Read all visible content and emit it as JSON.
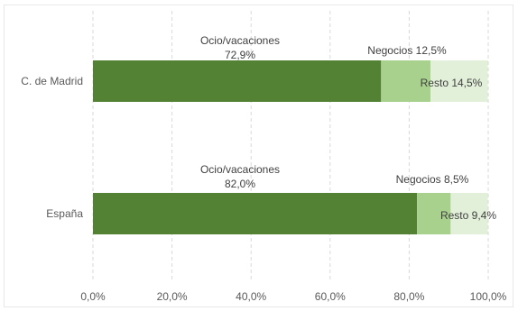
{
  "chart_data": {
    "type": "bar",
    "orientation": "horizontal",
    "stacked": true,
    "categories": [
      "C. de Madrid",
      "España"
    ],
    "series": [
      {
        "values": [
          72.9,
          82.0
        ],
        "labels": [
          "Ocio/vacaciones",
          "Ocio/vacaciones"
        ],
        "color": "#548235"
      },
      {
        "values": [
          12.5,
          8.5
        ],
        "labels": [
          "Negocios 12,5%",
          "Negocios 8,5%"
        ],
        "color": "#a9d18e"
      },
      {
        "values": [
          14.5,
          9.4
        ],
        "labels": [
          "Resto 14,5%",
          "Resto 9,4%"
        ],
        "color": "#e2f0d9"
      }
    ],
    "series_value_labels": [
      [
        "72,9%",
        "82,0%"
      ]
    ],
    "xlim": [
      0,
      100
    ],
    "x_ticks": [
      0,
      20,
      40,
      60,
      80,
      100
    ],
    "x_tick_labels": [
      "0,0%",
      "20,0%",
      "40,0%",
      "60,0%",
      "80,0%",
      "100,0%"
    ],
    "grid": "vertical-dashed",
    "legend": "none",
    "title": "",
    "xlabel": "",
    "ylabel": ""
  }
}
